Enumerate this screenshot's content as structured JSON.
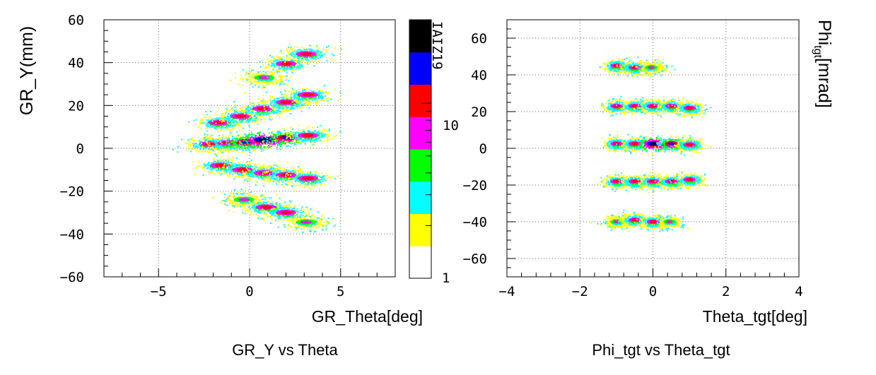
{
  "chart_data": [
    {
      "type": "heatmap",
      "title": "GR_Y vs Theta",
      "xlabel": "GR_Theta[deg]",
      "ylabel": "GR_Y(mm)",
      "xlim": [
        -8,
        8
      ],
      "ylim": [
        -60,
        60
      ],
      "x_ticks": [
        -5,
        0,
        5
      ],
      "y_ticks": [
        -60,
        -40,
        -20,
        0,
        20,
        40,
        60
      ],
      "x_tick_labels": [
        "−5",
        "0",
        "5"
      ],
      "y_tick_labels": [
        "−60",
        "−40",
        "−20",
        "0",
        "20",
        "40",
        "60"
      ],
      "grid": true,
      "colorbar": {
        "scale": "log",
        "tick_labels": [
          "1",
          "10"
        ],
        "label": "IAIZ19",
        "colors": [
          "#ffffff",
          "#ffff00",
          "#00ffff",
          "#00ff00",
          "#ff00ff",
          "#ff0000",
          "#0000ff",
          "#000000"
        ]
      },
      "spots": [
        {
          "x": -2.2,
          "y": 2,
          "intensity": 3
        },
        {
          "x": -1.2,
          "y": 2.5,
          "intensity": 3
        },
        {
          "x": -0.2,
          "y": 3,
          "intensity": 4
        },
        {
          "x": 0.8,
          "y": 4,
          "intensity": 5
        },
        {
          "x": 2.0,
          "y": 5,
          "intensity": 4
        },
        {
          "x": 3.2,
          "y": 6,
          "intensity": 3
        },
        {
          "x": -1.7,
          "y": 12,
          "intensity": 3
        },
        {
          "x": -0.5,
          "y": 15,
          "intensity": 3
        },
        {
          "x": 0.7,
          "y": 18.5,
          "intensity": 3
        },
        {
          "x": 2.0,
          "y": 21.5,
          "intensity": 3
        },
        {
          "x": 3.2,
          "y": 25,
          "intensity": 3
        },
        {
          "x": 0.8,
          "y": 33,
          "intensity": 2
        },
        {
          "x": 2.0,
          "y": 39.5,
          "intensity": 3
        },
        {
          "x": 3.1,
          "y": 44,
          "intensity": 3
        },
        {
          "x": -1.6,
          "y": -8,
          "intensity": 3
        },
        {
          "x": -0.4,
          "y": -10,
          "intensity": 3
        },
        {
          "x": 0.8,
          "y": -11.5,
          "intensity": 3
        },
        {
          "x": 2.0,
          "y": -12.5,
          "intensity": 3
        },
        {
          "x": 3.2,
          "y": -14,
          "intensity": 3
        },
        {
          "x": -0.3,
          "y": -24,
          "intensity": 2
        },
        {
          "x": 0.9,
          "y": -27.5,
          "intensity": 3
        },
        {
          "x": 2.0,
          "y": -30,
          "intensity": 3
        },
        {
          "x": 3.1,
          "y": -34.5,
          "intensity": 2
        }
      ]
    },
    {
      "type": "heatmap",
      "title": "Phi_tgt   vs Theta_tgt",
      "xlabel": "Theta_tgt[deg]",
      "ylabel_main": "Phi",
      "ylabel_sub": "tgt",
      "ylabel_tail": "[mrad]",
      "xlim": [
        -4,
        4
      ],
      "ylim": [
        -70,
        70
      ],
      "x_ticks": [
        -4,
        -2,
        0,
        2,
        4
      ],
      "y_ticks": [
        -60,
        -40,
        -20,
        0,
        20,
        40,
        60
      ],
      "x_tick_labels": [
        "−4",
        "−2",
        "0",
        "2",
        "4"
      ],
      "y_tick_labels": [
        "−60",
        "−40",
        "−20",
        "0",
        "20",
        "40",
        "60"
      ],
      "grid": true,
      "spots": [
        {
          "x": -1.0,
          "y": 45,
          "intensity": 3
        },
        {
          "x": -0.5,
          "y": 44,
          "intensity": 3
        },
        {
          "x": -0.05,
          "y": 44,
          "intensity": 2
        },
        {
          "x": -1.0,
          "y": 23,
          "intensity": 3
        },
        {
          "x": -0.5,
          "y": 23,
          "intensity": 3
        },
        {
          "x": 0.0,
          "y": 23,
          "intensity": 3
        },
        {
          "x": 0.5,
          "y": 23,
          "intensity": 3
        },
        {
          "x": 1.0,
          "y": 22,
          "intensity": 3
        },
        {
          "x": -1.0,
          "y": 2.5,
          "intensity": 3
        },
        {
          "x": -0.5,
          "y": 2.5,
          "intensity": 3
        },
        {
          "x": 0.0,
          "y": 2.5,
          "intensity": 5
        },
        {
          "x": 0.5,
          "y": 2.5,
          "intensity": 4
        },
        {
          "x": 1.0,
          "y": 2,
          "intensity": 3
        },
        {
          "x": -1.0,
          "y": -18,
          "intensity": 3
        },
        {
          "x": -0.5,
          "y": -18,
          "intensity": 3
        },
        {
          "x": 0.0,
          "y": -18,
          "intensity": 3
        },
        {
          "x": 0.5,
          "y": -18,
          "intensity": 3
        },
        {
          "x": 1.0,
          "y": -17,
          "intensity": 3
        },
        {
          "x": -1.0,
          "y": -40,
          "intensity": 2
        },
        {
          "x": -0.5,
          "y": -39,
          "intensity": 3
        },
        {
          "x": 0.0,
          "y": -40,
          "intensity": 3
        },
        {
          "x": 0.45,
          "y": -40,
          "intensity": 2
        }
      ]
    }
  ]
}
